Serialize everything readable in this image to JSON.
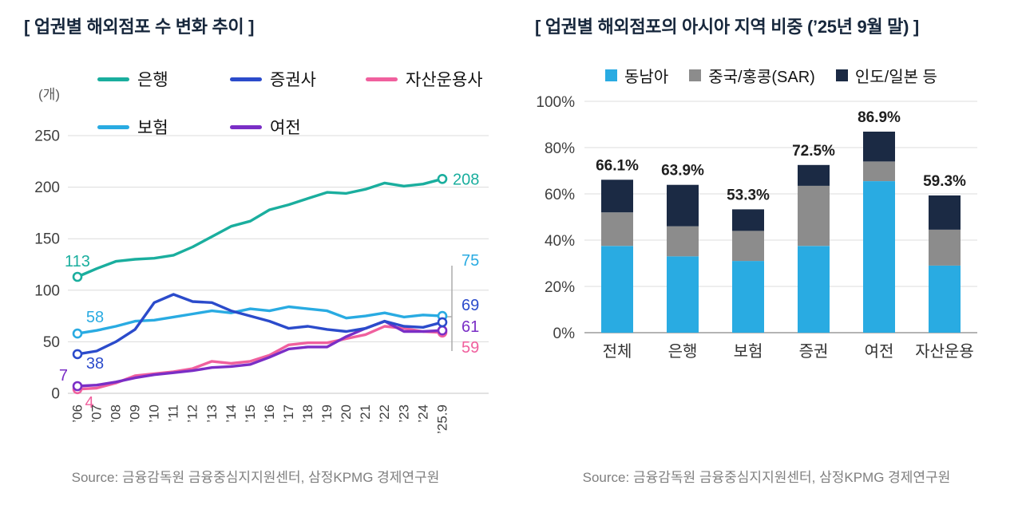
{
  "chart_data": [
    {
      "type": "line",
      "title": "[ 업권별 해외점포 수 변화 추이 ]",
      "unit_label": "(개)",
      "x": [
        "’06",
        "’07",
        "’08",
        "’09",
        "’10",
        "’11",
        "’12",
        "’13",
        "’14",
        "’15",
        "’16",
        "’17",
        "’18",
        "’19",
        "’20",
        "’21",
        "’22",
        "’23",
        "’24",
        "’25.9"
      ],
      "ylim": [
        0,
        250
      ],
      "yticks": [
        0,
        50,
        100,
        150,
        200,
        250
      ],
      "grid": true,
      "legend_position": "top",
      "legend_rows": [
        [
          "은행",
          "증권사",
          "자산운용사"
        ],
        [
          "보험",
          "여전"
        ]
      ],
      "series": [
        {
          "name": "은행",
          "color": "#1aae9e",
          "values": [
            113,
            121,
            128,
            130,
            131,
            134,
            142,
            152,
            162,
            167,
            178,
            183,
            189,
            195,
            194,
            198,
            204,
            201,
            203,
            208
          ]
        },
        {
          "name": "보험",
          "color": "#29abe2",
          "values": [
            58,
            61,
            65,
            70,
            71,
            74,
            77,
            80,
            78,
            82,
            80,
            84,
            82,
            80,
            73,
            75,
            78,
            74,
            76,
            75
          ]
        },
        {
          "name": "증권사",
          "color": "#2b4bcb",
          "values": [
            38,
            41,
            50,
            62,
            88,
            96,
            89,
            88,
            80,
            75,
            70,
            63,
            65,
            62,
            60,
            63,
            70,
            65,
            64,
            69
          ]
        },
        {
          "name": "여전",
          "color": "#7a2ec6",
          "values": [
            7,
            8,
            11,
            15,
            18,
            20,
            22,
            25,
            26,
            28,
            35,
            43,
            45,
            45,
            55,
            63,
            70,
            60,
            60,
            61
          ]
        },
        {
          "name": "자산운용사",
          "color": "#f0609e",
          "values": [
            4,
            5,
            10,
            17,
            19,
            21,
            24,
            31,
            29,
            31,
            37,
            47,
            49,
            49,
            53,
            57,
            65,
            63,
            60,
            59
          ]
        }
      ],
      "start_labels": [
        "113",
        "58",
        "38",
        "7",
        "4"
      ],
      "end_labels": [
        "208",
        "75",
        "69",
        "61",
        "59"
      ],
      "source": "Source: 금융감독원 금융중심지지원센터, 삼정KPMG 경제연구원"
    },
    {
      "type": "bar",
      "stacked": true,
      "title": "[ 업권별 해외점포의 아시아 지역 비중 (’25년 9월 말) ]",
      "categories": [
        "전체",
        "은행",
        "보험",
        "증권",
        "여전",
        "자산운용"
      ],
      "ylim_percent": [
        0,
        100
      ],
      "yticks_percent": [
        0,
        20,
        40,
        60,
        80,
        100
      ],
      "grid": true,
      "legend_position": "top",
      "series": [
        {
          "name": "동남아",
          "color": "#29abe2",
          "values": [
            37.5,
            33,
            31,
            37.5,
            65.5,
            29
          ]
        },
        {
          "name": "중국/홍콩(SAR)",
          "color": "#8c8c8c",
          "values": [
            14.5,
            13,
            13,
            26,
            8.5,
            15.5
          ]
        },
        {
          "name": "인도/일본 등",
          "color": "#1b2a44",
          "values": [
            14.1,
            17.9,
            9.3,
            9,
            12.9,
            14.8
          ]
        }
      ],
      "total_labels": [
        "66.1%",
        "63.9%",
        "53.3%",
        "72.5%",
        "86.9%",
        "59.3%"
      ],
      "source": "Source: 금융감독원 금융중심지지원센터, 삼정KPMG 경제연구원"
    }
  ]
}
